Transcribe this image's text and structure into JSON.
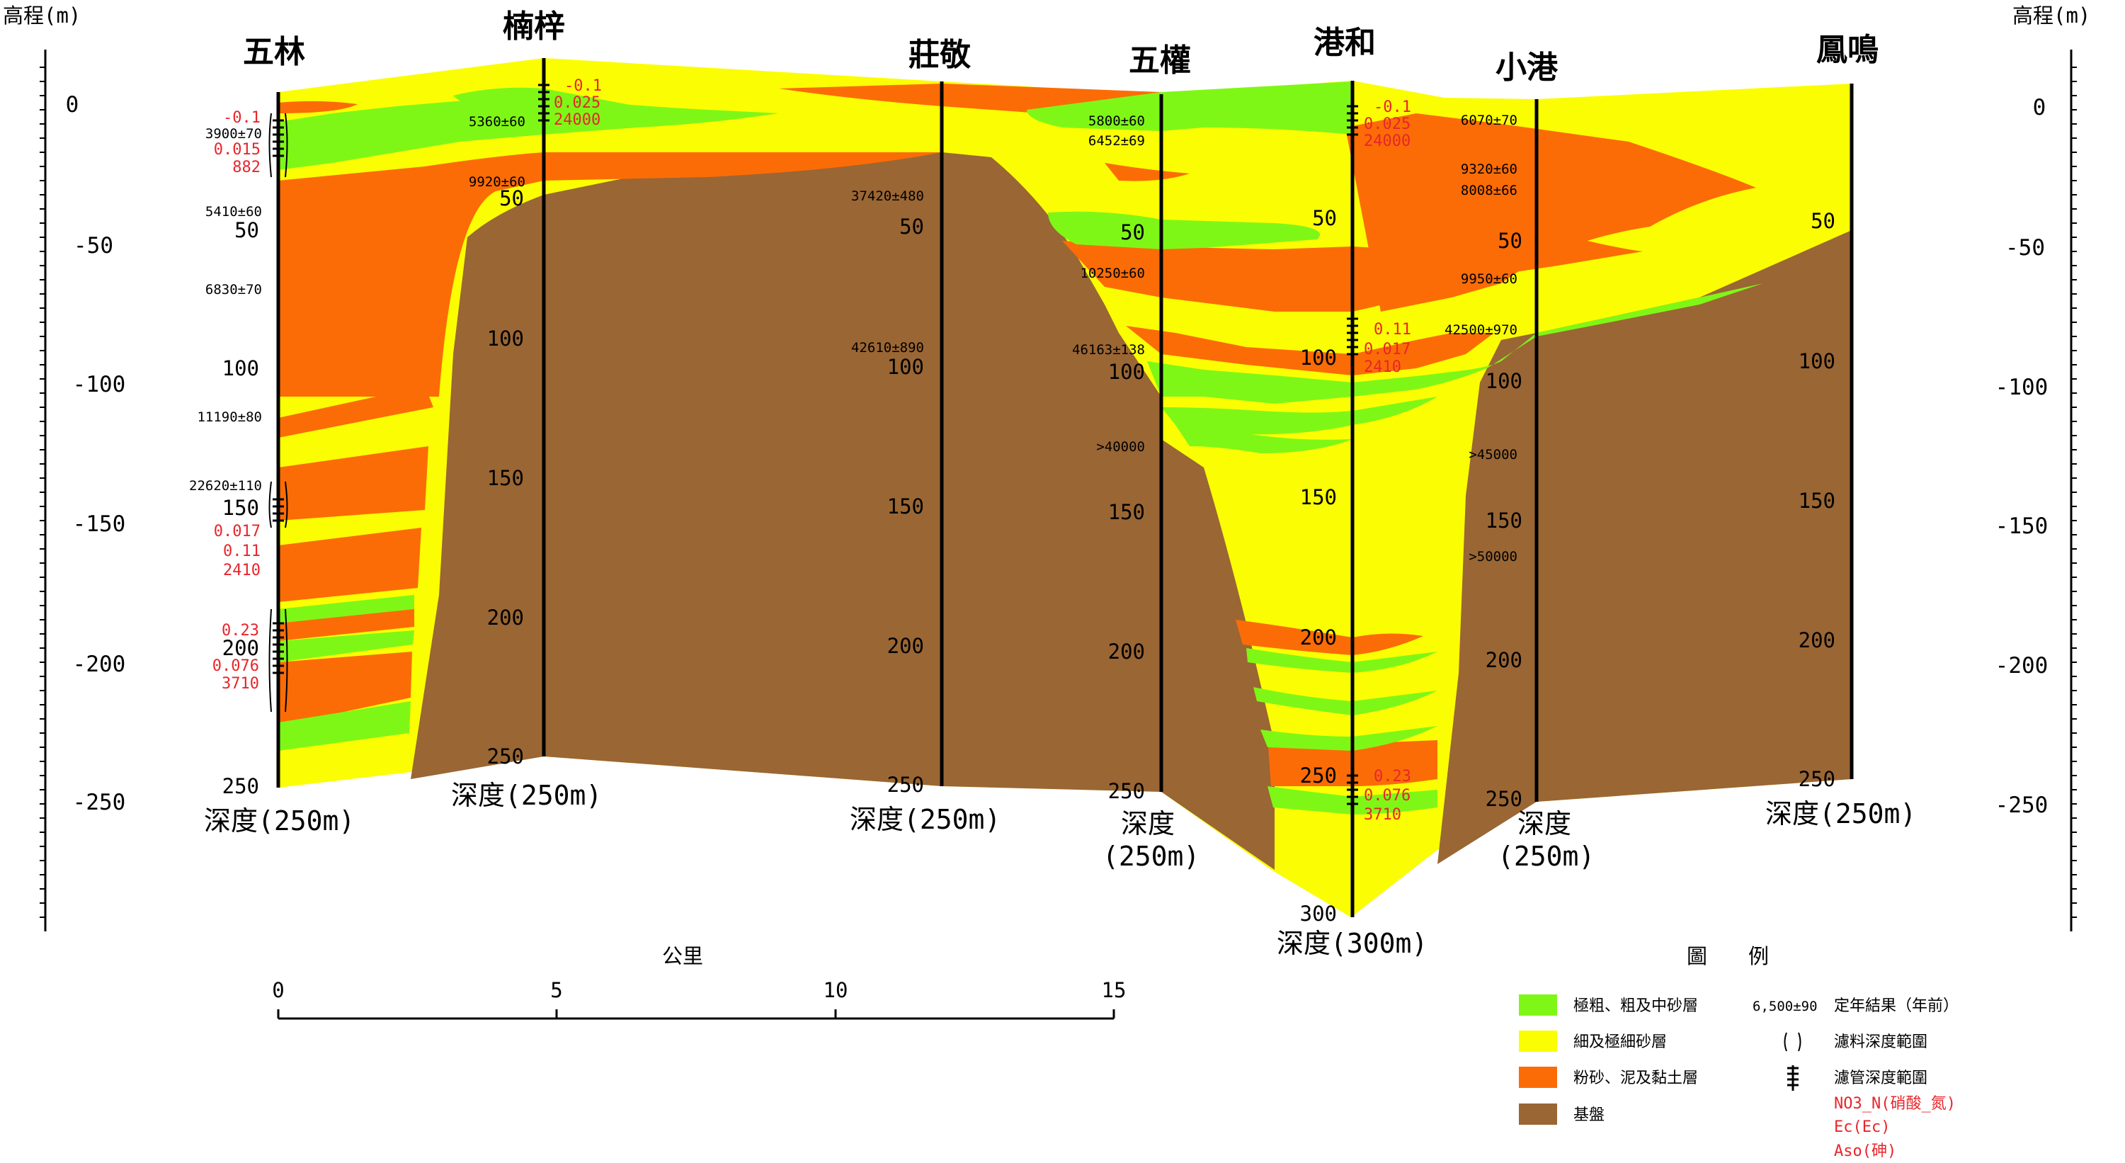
{
  "axis": {
    "elevation_title": "高程(m)",
    "elevation_ticks": [
      "0",
      "-50",
      "-100",
      "-150",
      "-200",
      "-250"
    ]
  },
  "wells": [
    {
      "name": "五林",
      "depth_label": "深度(250m)",
      "depth_ticks": [
        "50",
        "100",
        "150",
        "200",
        "250"
      ],
      "ages": [
        "3900±70",
        "5410±60",
        "6830±70",
        "11190±80",
        "22620±110"
      ],
      "chem_upper": [
        "-0.1",
        "0.015",
        "882"
      ],
      "chem_lower": [
        "0.017",
        "0.11",
        "2410"
      ],
      "chem_bottom": [
        "0.23",
        "0.076",
        "3710"
      ]
    },
    {
      "name": "楠梓",
      "depth_label": "深度(250m)",
      "depth_ticks": [
        "50",
        "100",
        "150",
        "200",
        "250"
      ],
      "ages": [
        "5360±60",
        "9920±60"
      ],
      "chem_upper": [
        "-0.1",
        "0.025",
        "24000"
      ]
    },
    {
      "name": "莊敬",
      "depth_label": "深度(250m)",
      "depth_ticks": [
        "50",
        "100",
        "150",
        "200",
        "250"
      ],
      "ages": [
        "37420±480",
        "42610±890"
      ]
    },
    {
      "name": "五權",
      "depth_label_1": "深度",
      "depth_label_2": "(250m)",
      "depth_ticks": [
        "50",
        "100",
        "150",
        "200",
        "250"
      ],
      "ages": [
        "5800±60",
        "6452±69",
        "10250±60",
        "46163±138",
        ">40000"
      ]
    },
    {
      "name": "港和",
      "depth_label": "深度(300m)",
      "depth_ticks": [
        "50",
        "100",
        "150",
        "200",
        "250",
        "300"
      ],
      "chem_upper": [
        "-0.1",
        "0.025",
        "24000"
      ],
      "chem_mid": [
        "0.11",
        "0.017",
        "2410"
      ],
      "chem_lower": [
        "0.23",
        "0.076",
        "3710"
      ]
    },
    {
      "name": "小港",
      "depth_label_1": "深度",
      "depth_label_2": "(250m)",
      "depth_ticks": [
        "50",
        "100",
        "150",
        "200",
        "250"
      ],
      "ages": [
        "6070±70",
        "9320±60",
        "8008±66",
        "9950±60",
        "42500±970",
        ">45000",
        ">50000"
      ]
    },
    {
      "name": "鳳鳴",
      "depth_label": "深度(250m)",
      "depth_ticks": [
        "50",
        "100",
        "150",
        "200",
        "250"
      ]
    }
  ],
  "scale_bar": {
    "unit": "公里",
    "ticks": [
      "0",
      "5",
      "10",
      "15"
    ]
  },
  "legend": {
    "title": "圖　　例",
    "items": [
      {
        "label": "極粗、粗及中砂層",
        "color": "#7ff716"
      },
      {
        "label": "細及極細砂層",
        "color": "#fbfd03"
      },
      {
        "label": "粉砂、泥及黏土層",
        "color": "#fb6c06"
      },
      {
        "label": "基盤",
        "color": "#9a6634"
      }
    ],
    "symbols": [
      {
        "sample": "6,500±90",
        "label": "定年結果（年前）"
      },
      {
        "sample": "",
        "label": "濾料深度範圍"
      },
      {
        "sample": "",
        "label": "濾管深度範圍"
      }
    ],
    "red_notes": [
      "NO3_N(硝酸_氮)",
      "Ec(Ec)",
      "Aso(砷)"
    ]
  },
  "colors": {
    "coarse_sand": "#7ff716",
    "fine_sand": "#fbfd03",
    "silt_clay": "#fb6c06",
    "basement": "#9a6634",
    "annotation_red": "#e8252b"
  }
}
